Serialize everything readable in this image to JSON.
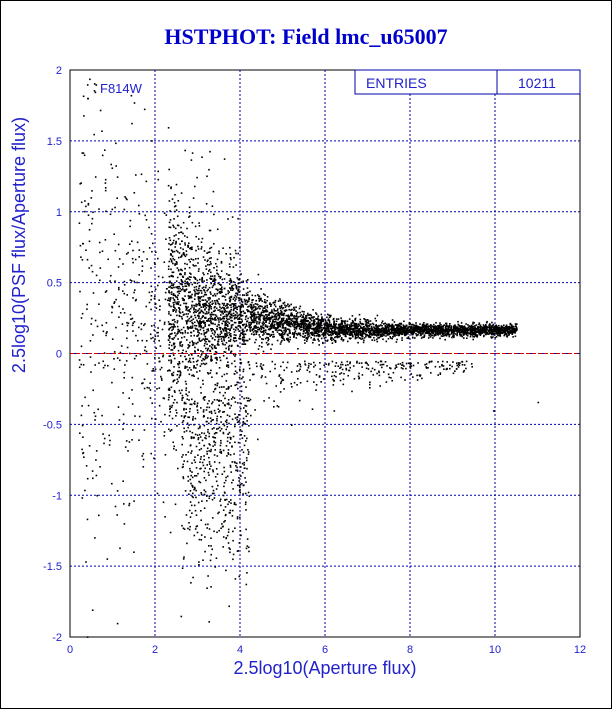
{
  "title": "HSTPHOT: Field lmc_u65007",
  "chart_data": {
    "type": "scatter",
    "title": "HSTPHOT: Field lmc_u65007",
    "xlabel": "2.5log10(Aperture flux)",
    "ylabel": "2.5log10(PSF flux/Aperture flux)",
    "xlim": [
      0,
      12
    ],
    "ylim": [
      -2,
      2
    ],
    "xticks": [
      "0",
      "2",
      "4",
      "6",
      "8",
      "10",
      "12"
    ],
    "yticks": [
      "-2",
      "-1.5",
      "-1",
      "-0.5",
      "0",
      "0.5",
      "1",
      "1.5",
      "2"
    ],
    "grid": true,
    "filter_label": "F814W",
    "stats": {
      "label": "ENTRIES",
      "value": "10211"
    },
    "reference_line_y": 0,
    "series": [
      {
        "values_description": "dense cloud",
        "points": [
          [
            0.45,
            1.94
          ],
          [
            0.6,
            1.9
          ],
          [
            0.3,
            1.82
          ],
          [
            0.55,
            1.55
          ],
          [
            0.7,
            1.72
          ],
          [
            0.8,
            1.44
          ],
          [
            1.1,
            1.25
          ],
          [
            1.3,
            1.1
          ],
          [
            1.6,
            1.05
          ],
          [
            1.75,
            0.98
          ],
          [
            1.9,
            0.85
          ],
          [
            2.0,
            0.72
          ],
          [
            2.2,
            0.65
          ],
          [
            2.4,
            0.55
          ],
          [
            2.7,
            0.5
          ],
          [
            3.0,
            0.45
          ],
          [
            3.5,
            0.35
          ],
          [
            4.0,
            0.3
          ],
          [
            5.0,
            0.25
          ],
          [
            6.0,
            0.22
          ],
          [
            7.0,
            0.2
          ],
          [
            8.0,
            0.18
          ],
          [
            9.0,
            0.17
          ],
          [
            10.0,
            0.17
          ],
          [
            10.4,
            0.17
          ],
          [
            11.0,
            -0.34
          ],
          [
            9.95,
            -0.4
          ],
          [
            3.0,
            -0.6
          ],
          [
            3.2,
            -1.0
          ],
          [
            3.4,
            -1.5
          ],
          [
            2.6,
            -1.85
          ],
          [
            1.1,
            -1.9
          ],
          [
            2.3,
            -0.32
          ],
          [
            4.4,
            -0.6
          ],
          [
            5.2,
            -0.5
          ],
          [
            6.2,
            -0.4
          ]
        ]
      }
    ]
  }
}
